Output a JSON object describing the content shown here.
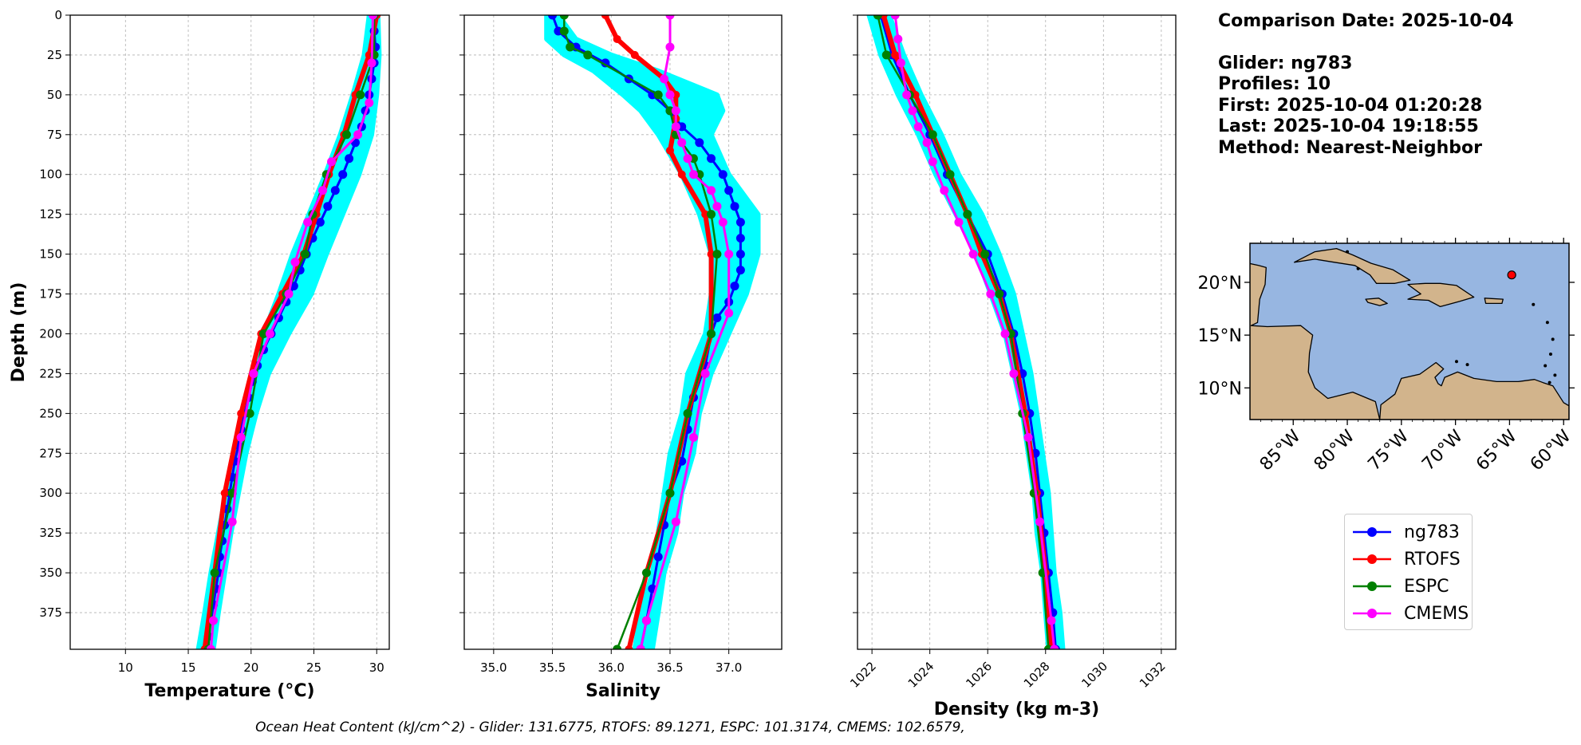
{
  "info": {
    "comparison_date": "Comparison Date: 2025-10-04",
    "glider": "Glider: ng783",
    "profiles": "Profiles: 10",
    "first": "First: 2025-10-04 01:20:28",
    "last": "Last: 2025-10-04 19:18:55",
    "method": "Method: Nearest-Neighbor"
  },
  "footer": "Ocean Heat Content (kJ/cm^2) - Glider: 131.6775,  RTOFS: 89.1271,  ESPC: 101.3174,  CMEMS: 102.6579,",
  "colors": {
    "glider": "#0000ff",
    "rtofs": "#ff0000",
    "espc": "#008000",
    "cmems": "#ff00ff",
    "glider_spread": "#00ffff",
    "ocean": "#97b6e1",
    "land": "#d2b48c"
  },
  "legend": [
    {
      "label": "ng783",
      "color": "#0000ff"
    },
    {
      "label": "RTOFS",
      "color": "#ff0000"
    },
    {
      "label": "ESPC",
      "color": "#008000"
    },
    {
      "label": "CMEMS",
      "color": "#ff00ff"
    }
  ],
  "chart_data": [
    {
      "type": "line",
      "xlabel": "Temperature (°C)",
      "ylabel": "Depth (m)",
      "xlim": [
        5.6,
        31
      ],
      "ylim": [
        398,
        0
      ],
      "xticks": [
        10,
        15,
        20,
        25,
        30
      ],
      "yticks": [
        0,
        25,
        50,
        75,
        100,
        125,
        150,
        175,
        200,
        225,
        250,
        275,
        300,
        325,
        350,
        375
      ],
      "grid": true,
      "glider_spread": {
        "depth": [
          0,
          25,
          50,
          75,
          100,
          125,
          150,
          175,
          200,
          225,
          250,
          275,
          300,
          325,
          350,
          375,
          398
        ],
        "min": [
          29.4,
          29.0,
          28.1,
          27.1,
          25.9,
          24.6,
          23.3,
          22.2,
          21.0,
          20.1,
          19.3,
          18.6,
          18.0,
          17.4,
          16.8,
          16.3,
          15.8
        ],
        "max": [
          30.1,
          30.2,
          30.0,
          29.6,
          28.6,
          27.3,
          26.0,
          24.8,
          23.0,
          21.4,
          20.4,
          19.6,
          19.0,
          18.4,
          17.9,
          17.4,
          17.0
        ]
      },
      "series": [
        {
          "name": "ng783",
          "depth": [
            0,
            10,
            20,
            30,
            40,
            50,
            60,
            70,
            80,
            90,
            100,
            110,
            120,
            130,
            140,
            150,
            160,
            170,
            180,
            190,
            200,
            210,
            220,
            230,
            240,
            250,
            260,
            270,
            280,
            290,
            300,
            310,
            320,
            330,
            340,
            350,
            360,
            370,
            380,
            390,
            398
          ],
          "values": [
            29.8,
            29.8,
            29.9,
            29.8,
            29.6,
            29.4,
            29.1,
            28.8,
            28.3,
            27.8,
            27.3,
            26.7,
            26.1,
            25.5,
            24.9,
            24.4,
            23.9,
            23.4,
            22.8,
            22.2,
            21.6,
            21.0,
            20.5,
            20.1,
            19.8,
            19.5,
            19.2,
            19.0,
            18.7,
            18.5,
            18.3,
            18.1,
            17.9,
            17.7,
            17.5,
            17.4,
            17.2,
            17.0,
            16.8,
            16.6,
            16.4
          ]
        },
        {
          "name": "RTOFS",
          "depth": [
            0,
            25,
            50,
            75,
            100,
            125,
            150,
            175,
            200,
            250,
            300,
            350,
            398
          ],
          "values": [
            30.0,
            29.4,
            28.3,
            27.4,
            26.2,
            25.2,
            24.2,
            22.5,
            20.8,
            19.2,
            17.9,
            17.1,
            16.3
          ]
        },
        {
          "name": "ESPC",
          "depth": [
            0,
            25,
            50,
            75,
            100,
            125,
            150,
            175,
            200,
            250,
            300,
            350,
            398
          ],
          "values": [
            29.8,
            29.8,
            28.7,
            27.6,
            26.0,
            24.9,
            24.3,
            22.8,
            21.0,
            19.9,
            18.5,
            17.1,
            16.6
          ]
        },
        {
          "name": "CMEMS",
          "depth": [
            0,
            30,
            55,
            75,
            92,
            110,
            130,
            155,
            175,
            200,
            225,
            265,
            318,
            380,
            398
          ],
          "values": [
            29.7,
            29.6,
            29.4,
            28.5,
            26.4,
            25.7,
            24.5,
            23.5,
            23.0,
            21.5,
            20.2,
            19.2,
            18.5,
            17.0,
            16.8
          ]
        }
      ]
    },
    {
      "type": "line",
      "xlabel": "Salinity",
      "ylabel": "",
      "xlim": [
        34.75,
        37.45
      ],
      "ylim": [
        398,
        0
      ],
      "xticks": [
        35.0,
        35.5,
        36.0,
        36.5,
        37.0
      ],
      "yticks": [
        0,
        25,
        50,
        75,
        100,
        125,
        150,
        175,
        200,
        225,
        250,
        275,
        300,
        325,
        350,
        375
      ],
      "grid": true,
      "glider_spread": {
        "depth": [
          0,
          15,
          25,
          35,
          50,
          60,
          75,
          100,
          125,
          150,
          175,
          200,
          225,
          250,
          275,
          300,
          325,
          350,
          375,
          398
        ],
        "min": [
          35.45,
          35.45,
          35.6,
          35.85,
          36.1,
          36.25,
          36.4,
          36.6,
          36.75,
          36.85,
          36.85,
          36.8,
          36.65,
          36.6,
          36.5,
          36.45,
          36.4,
          36.35,
          36.25,
          36.2
        ],
        "max": [
          35.55,
          35.7,
          36.0,
          36.4,
          36.9,
          36.95,
          36.85,
          37.0,
          37.25,
          37.25,
          37.15,
          37.0,
          36.85,
          36.75,
          36.7,
          36.6,
          36.55,
          36.45,
          36.4,
          36.35
        ]
      },
      "series": [
        {
          "name": "ng783",
          "depth": [
            0,
            10,
            20,
            30,
            40,
            50,
            60,
            70,
            80,
            90,
            100,
            110,
            120,
            130,
            140,
            150,
            160,
            170,
            180,
            190,
            200,
            220,
            240,
            260,
            280,
            300,
            320,
            340,
            360,
            380,
            398
          ],
          "values": [
            35.5,
            35.55,
            35.7,
            35.95,
            36.15,
            36.35,
            36.5,
            36.6,
            36.75,
            36.85,
            36.95,
            37.0,
            37.05,
            37.1,
            37.1,
            37.1,
            37.1,
            37.05,
            37.0,
            36.9,
            36.85,
            36.8,
            36.7,
            36.65,
            36.6,
            36.5,
            36.45,
            36.4,
            36.35,
            36.3,
            36.25
          ]
        },
        {
          "name": "RTOFS",
          "depth": [
            0,
            15,
            25,
            40,
            50,
            65,
            85,
            100,
            125,
            150,
            200,
            250,
            300,
            350,
            398
          ],
          "values": [
            35.95,
            36.05,
            36.2,
            36.45,
            36.55,
            36.55,
            36.5,
            36.6,
            36.8,
            36.85,
            36.85,
            36.65,
            36.5,
            36.3,
            36.15
          ]
        },
        {
          "name": "ESPC",
          "depth": [
            0,
            10,
            20,
            25,
            50,
            60,
            75,
            90,
            100,
            125,
            150,
            200,
            250,
            300,
            350,
            398
          ],
          "values": [
            35.6,
            35.6,
            35.65,
            35.8,
            36.4,
            36.5,
            36.55,
            36.7,
            36.75,
            36.85,
            36.9,
            36.85,
            36.65,
            36.5,
            36.3,
            36.05
          ]
        },
        {
          "name": "CMEMS",
          "depth": [
            0,
            20,
            40,
            50,
            60,
            70,
            80,
            90,
            100,
            110,
            120,
            130,
            150,
            187,
            225,
            265,
            318,
            380,
            398
          ],
          "values": [
            36.5,
            36.5,
            36.45,
            36.5,
            36.55,
            36.55,
            36.6,
            36.65,
            36.7,
            36.85,
            36.9,
            36.95,
            37.0,
            37.0,
            36.8,
            36.7,
            36.55,
            36.3,
            36.25
          ]
        }
      ]
    },
    {
      "type": "line",
      "xlabel": "Density (kg m-3)",
      "ylabel": "",
      "xlim": [
        1021.5,
        1032.5
      ],
      "ylim": [
        398,
        0
      ],
      "xticks": [
        1022,
        1024,
        1026,
        1028,
        1030,
        1032
      ],
      "yticks": [
        0,
        25,
        50,
        75,
        100,
        125,
        150,
        175,
        200,
        225,
        250,
        275,
        300,
        325,
        350,
        375
      ],
      "grid": true,
      "glider_spread": {
        "depth": [
          0,
          25,
          50,
          75,
          100,
          125,
          150,
          175,
          200,
          225,
          250,
          275,
          300,
          325,
          350,
          375,
          398
        ],
        "min": [
          1021.9,
          1022.3,
          1022.9,
          1023.6,
          1024.2,
          1024.9,
          1025.6,
          1026.1,
          1026.6,
          1026.9,
          1027.2,
          1027.4,
          1027.6,
          1027.7,
          1027.9,
          1028.0,
          1028.1
        ],
        "max": [
          1022.6,
          1023.1,
          1023.7,
          1024.4,
          1025.0,
          1025.8,
          1026.4,
          1026.9,
          1027.2,
          1027.5,
          1027.7,
          1027.9,
          1028.1,
          1028.2,
          1028.3,
          1028.5,
          1028.6
        ]
      },
      "series": [
        {
          "name": "ng783",
          "depth": [
            0,
            25,
            50,
            75,
            100,
            125,
            150,
            175,
            200,
            225,
            250,
            275,
            300,
            325,
            350,
            375,
            398
          ],
          "values": [
            1022.3,
            1022.7,
            1023.3,
            1024.0,
            1024.6,
            1025.3,
            1026.0,
            1026.5,
            1026.9,
            1027.2,
            1027.45,
            1027.65,
            1027.8,
            1027.95,
            1028.1,
            1028.25,
            1028.35
          ]
        },
        {
          "name": "RTOFS",
          "depth": [
            0,
            25,
            50,
            75,
            100,
            125,
            150,
            175,
            200,
            250,
            300,
            350,
            398
          ],
          "values": [
            1022.4,
            1022.8,
            1023.5,
            1024.1,
            1024.7,
            1025.3,
            1025.8,
            1026.4,
            1026.8,
            1027.3,
            1027.7,
            1028.0,
            1028.2
          ]
        },
        {
          "name": "ESPC",
          "depth": [
            0,
            25,
            50,
            75,
            100,
            125,
            150,
            175,
            200,
            250,
            300,
            350,
            398
          ],
          "values": [
            1022.2,
            1022.5,
            1023.3,
            1024.1,
            1024.7,
            1025.3,
            1025.9,
            1026.4,
            1026.8,
            1027.2,
            1027.6,
            1027.9,
            1028.1
          ]
        },
        {
          "name": "CMEMS",
          "depth": [
            0,
            15,
            30,
            50,
            60,
            70,
            80,
            92,
            110,
            130,
            150,
            175,
            200,
            225,
            265,
            318,
            380,
            398
          ],
          "values": [
            1022.8,
            1022.9,
            1023.0,
            1023.2,
            1023.4,
            1023.6,
            1023.9,
            1024.1,
            1024.5,
            1025.0,
            1025.5,
            1026.1,
            1026.6,
            1026.9,
            1027.4,
            1027.8,
            1028.2,
            1028.3
          ]
        }
      ]
    }
  ],
  "map": {
    "lat_labels": [
      "20°N",
      "15°N",
      "10°N"
    ],
    "lon_labels": [
      "85°W",
      "80°W",
      "75°W",
      "70°W",
      "65°W",
      "60°W"
    ],
    "lat_values": [
      20,
      15,
      10
    ],
    "lon_values": [
      -85,
      -80,
      -75,
      -70,
      -65,
      -60
    ],
    "lon_range": [
      -89,
      -59.5
    ],
    "lat_range": [
      7,
      23.7
    ],
    "glider_position": {
      "lon": -64.8,
      "lat": 20.7
    }
  }
}
